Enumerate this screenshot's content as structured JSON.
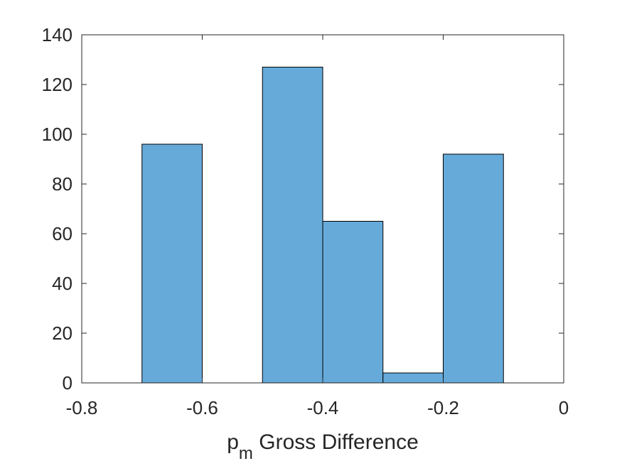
{
  "chart_data": {
    "type": "bar",
    "subtype": "histogram",
    "bins": [
      {
        "start": -0.7,
        "end": -0.6,
        "count": 96
      },
      {
        "start": -0.5,
        "end": -0.4,
        "count": 127
      },
      {
        "start": -0.4,
        "end": -0.3,
        "count": 65
      },
      {
        "start": -0.3,
        "end": -0.2,
        "count": 4
      },
      {
        "start": -0.2,
        "end": -0.1,
        "count": 92
      }
    ],
    "xlim": [
      -0.8,
      0
    ],
    "ylim": [
      0,
      140
    ],
    "xticks": [
      -0.8,
      -0.6,
      -0.4,
      -0.2,
      0
    ],
    "xtick_labels": [
      "-0.8",
      "-0.6",
      "-0.4",
      "-0.2",
      "0"
    ],
    "yticks": [
      0,
      20,
      40,
      60,
      80,
      100,
      120,
      140
    ],
    "ytick_labels": [
      "0",
      "20",
      "40",
      "60",
      "80",
      "100",
      "120",
      "140"
    ],
    "xlabel": {
      "main": "p",
      "subscript": "m",
      "rest": " Gross Difference"
    },
    "ylabel": "",
    "title": "",
    "grid": false,
    "bar_color": "#66AADA",
    "edge_color": "#000000"
  }
}
